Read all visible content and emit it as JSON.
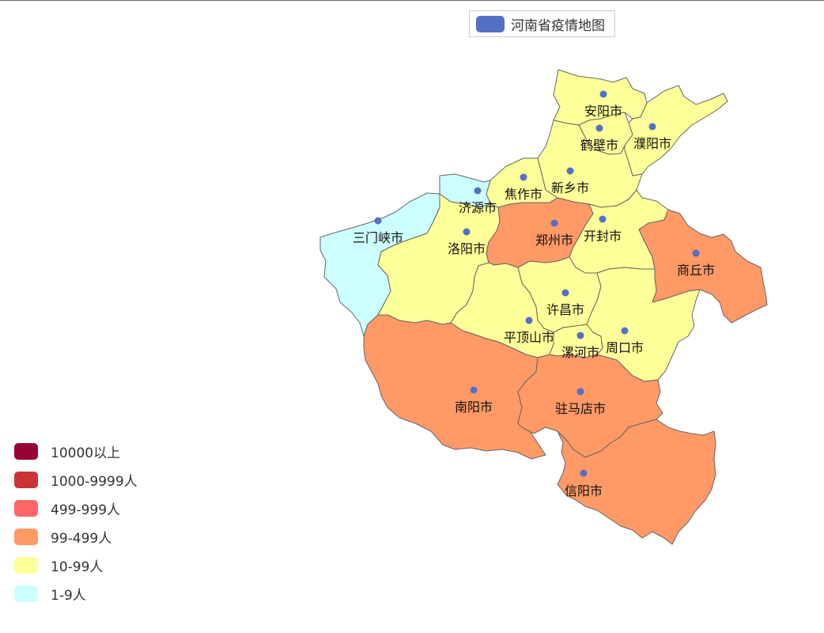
{
  "legend": {
    "series_name": "河南省疫情地图",
    "series_color": "#5470c6"
  },
  "visual_map": {
    "pieces": [
      {
        "label": "10000以上",
        "color": "#990033"
      },
      {
        "label": "1000-9999人",
        "color": "#cc3333"
      },
      {
        "label": "499-999人",
        "color": "#ff6666"
      },
      {
        "label": "99-499人",
        "color": "#ff9966"
      },
      {
        "label": "10-99人",
        "color": "#ffff99"
      },
      {
        "label": "1-9人",
        "color": "#ccffff"
      }
    ]
  },
  "map": {
    "region": "河南省",
    "cities": [
      {
        "name": "安阳市",
        "category": "10-99人"
      },
      {
        "name": "鹤壁市",
        "category": "10-99人"
      },
      {
        "name": "濮阳市",
        "category": "10-99人"
      },
      {
        "name": "新乡市",
        "category": "10-99人"
      },
      {
        "name": "焦作市",
        "category": "10-99人"
      },
      {
        "name": "济源市",
        "category": "1-9人"
      },
      {
        "name": "三门峡市",
        "category": "1-9人"
      },
      {
        "name": "洛阳市",
        "category": "10-99人"
      },
      {
        "name": "郑州市",
        "category": "99-499人"
      },
      {
        "name": "开封市",
        "category": "10-99人"
      },
      {
        "name": "商丘市",
        "category": "99-499人"
      },
      {
        "name": "许昌市",
        "category": "10-99人"
      },
      {
        "name": "平顶山市",
        "category": "10-99人"
      },
      {
        "name": "漯河市",
        "category": "10-99人"
      },
      {
        "name": "周口市",
        "category": "10-99人"
      },
      {
        "name": "南阳市",
        "category": "99-499人"
      },
      {
        "name": "驻马店市",
        "category": "99-499人"
      },
      {
        "name": "信阳市",
        "category": "99-499人"
      }
    ]
  }
}
